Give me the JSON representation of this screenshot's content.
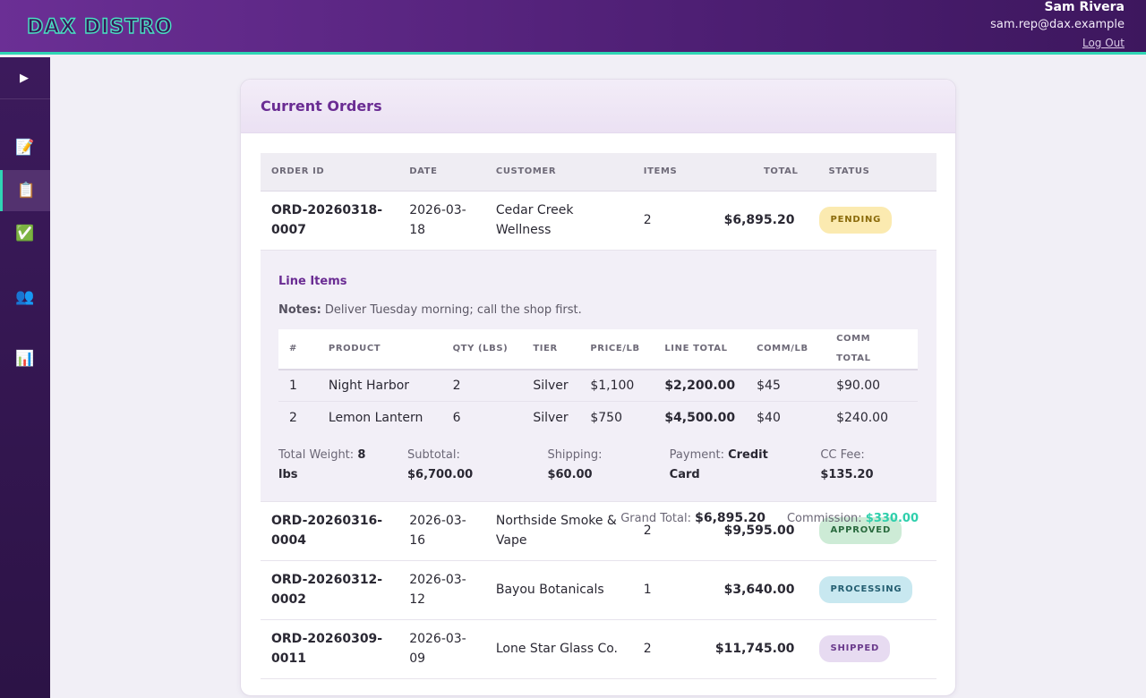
{
  "app": {
    "logo": "DAX DISTRO"
  },
  "user": {
    "name": "Sam Rivera",
    "email": "sam.rep@dax.example",
    "logout_label": "Log Out"
  },
  "sidebar": {
    "toggle_icon": "play-icon",
    "items": [
      {
        "icon": "memo-icon",
        "glyph": "📝",
        "active": false
      },
      {
        "icon": "clipboard-icon",
        "glyph": "📋",
        "active": true
      },
      {
        "icon": "check-box-icon",
        "glyph": "✅",
        "active": false
      },
      {
        "icon": "users-icon",
        "glyph": "👥",
        "active": false
      },
      {
        "icon": "bar-chart-icon",
        "glyph": "📊",
        "active": false
      }
    ]
  },
  "page": {
    "title": "Current Orders"
  },
  "orders": {
    "columns": [
      "ORDER ID",
      "DATE",
      "CUSTOMER",
      "ITEMS",
      "TOTAL",
      "STATUS"
    ],
    "rows": [
      {
        "id": "ORD-20260318-0007",
        "date": "2026-03-18",
        "customer": "Cedar Creek Wellness",
        "items": "2",
        "total": "$6,895.20",
        "status": "PENDING",
        "status_color": "#fbeab0"
      },
      {
        "id": "ORD-20260316-0004",
        "date": "2026-03-16",
        "customer": "Northside Smoke & Vape",
        "items": "2",
        "total": "$9,595.00",
        "status": "APPROVED",
        "status_color": "#cdebd6"
      },
      {
        "id": "ORD-20260312-0002",
        "date": "2026-03-12",
        "customer": "Bayou Botanicals",
        "items": "1",
        "total": "$3,640.00",
        "status": "PROCESSING",
        "status_color": "#c8e8f0"
      },
      {
        "id": "ORD-20260309-0011",
        "date": "2026-03-09",
        "customer": "Lone Star Glass Co.",
        "items": "2",
        "total": "$11,745.00",
        "status": "SHIPPED",
        "status_color": "#e7dbf1"
      }
    ]
  },
  "detail": {
    "title": "Line Items",
    "notes_label": "Notes:",
    "notes_text": "Deliver Tuesday morning; call the shop first.",
    "columns": [
      "#",
      "PRODUCT",
      "QTY (LBS)",
      "TIER",
      "PRICE/LB",
      "LINE TOTAL",
      "COMM/LB",
      "COMM TOTAL"
    ],
    "lines": [
      {
        "n": "1",
        "product": "Night Harbor",
        "qty": "2",
        "tier": "Silver",
        "price": "$1,100",
        "line_total": "$2,200.00",
        "comm_lb": "$45",
        "comm_total": "$90.00"
      },
      {
        "n": "2",
        "product": "Lemon Lantern",
        "qty": "6",
        "tier": "Silver",
        "price": "$750",
        "line_total": "$4,500.00",
        "comm_lb": "$40",
        "comm_total": "$240.00"
      }
    ],
    "summary": {
      "weight_label": "Total Weight:",
      "weight": "8 lbs",
      "subtotal_label": "Subtotal:",
      "subtotal": "$6,700.00",
      "shipping_label": "Shipping:",
      "shipping": "$60.00",
      "payment_label": "Payment:",
      "payment": "Credit Card",
      "ccfee_label": "CC Fee:",
      "ccfee": "$135.20",
      "grand_label": "Grand Total:",
      "grand": "$6,895.20",
      "commission_label": "Commission:",
      "commission": "$330.00"
    }
  }
}
